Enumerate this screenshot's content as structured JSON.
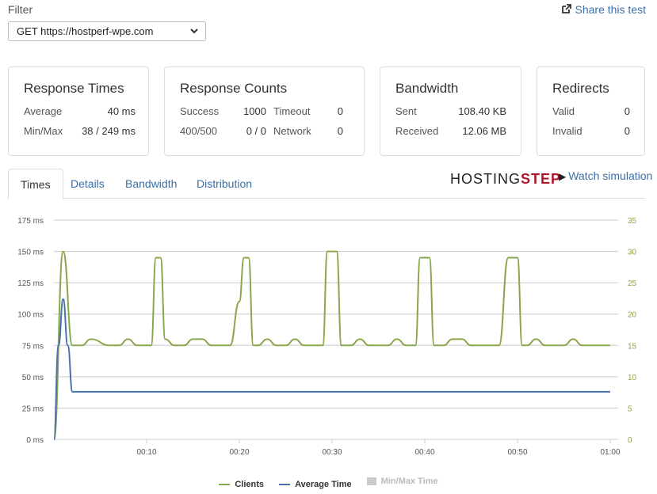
{
  "filter": {
    "label": "Filter",
    "selected": "GET https://hostperf-wpe.com"
  },
  "share_label": "Share this test",
  "cards": {
    "response_times": {
      "title": "Response Times",
      "average_label": "Average",
      "average_value": "40 ms",
      "minmax_label": "Min/Max",
      "minmax_value": "38 / 249 ms"
    },
    "response_counts": {
      "title": "Response Counts",
      "success_label": "Success",
      "success_value": "1000",
      "timeout_label": "Timeout",
      "timeout_value": "0",
      "r400_label": "400/500",
      "r400_value": "0 / 0",
      "network_label": "Network",
      "network_value": "0"
    },
    "bandwidth": {
      "title": "Bandwidth",
      "sent_label": "Sent",
      "sent_value": "108.40 KB",
      "received_label": "Received",
      "received_value": "12.06 MB"
    },
    "redirects": {
      "title": "Redirects",
      "valid_label": "Valid",
      "valid_value": "0",
      "invalid_label": "Invalid",
      "invalid_value": "0"
    }
  },
  "tabs": [
    "Times",
    "Details",
    "Bandwidth",
    "Distribution"
  ],
  "logo": {
    "main": "HOSTING",
    "accent": "STEP"
  },
  "watch_label": "Watch simulation",
  "colors": {
    "clients": "#8aa64a",
    "average": "#4a72a8",
    "minmax": "#cccccc",
    "grid": "#cccccc"
  },
  "chart_data": {
    "type": "line",
    "x_ticks": [
      "00:10",
      "00:20",
      "00:30",
      "00:40",
      "00:50",
      "01:00"
    ],
    "x_tick_seconds": [
      10,
      20,
      30,
      40,
      50,
      60
    ],
    "xlim": [
      0,
      60
    ],
    "y_left_ticks": [
      "0 ms",
      "25 ms",
      "50 ms",
      "75 ms",
      "100 ms",
      "125 ms",
      "150 ms",
      "175 ms"
    ],
    "y_left_lim": [
      0,
      175
    ],
    "y_right_ticks": [
      "0",
      "5",
      "10",
      "15",
      "20",
      "25",
      "30",
      "35"
    ],
    "y_right_lim": [
      0,
      35
    ],
    "series": [
      {
        "name": "Clients",
        "axis": "right",
        "x": [
          0,
          1,
          2,
          3,
          4,
          6,
          7,
          8,
          9,
          10,
          10.5,
          11,
          11.5,
          12,
          13,
          14,
          15,
          16,
          17,
          18,
          19,
          20,
          20.5,
          21,
          21.5,
          22,
          23,
          24,
          25,
          26,
          27,
          28,
          29,
          29.5,
          30,
          30.5,
          31,
          32,
          33,
          34,
          35,
          36,
          37,
          38,
          39,
          39.5,
          40,
          40.5,
          41,
          42,
          43,
          44,
          45,
          46,
          47,
          48,
          49,
          49.5,
          50,
          50.5,
          51,
          52,
          53,
          54,
          55,
          56,
          57,
          58,
          59,
          60
        ],
        "values": [
          0,
          30,
          15,
          15,
          16,
          15,
          15,
          16,
          15,
          15,
          15,
          29,
          29,
          16,
          15,
          15,
          16,
          16,
          15,
          15,
          15,
          22,
          29,
          29,
          15,
          15,
          16,
          15,
          15,
          16,
          15,
          15,
          15,
          30,
          30,
          30,
          15,
          15,
          16,
          15,
          15,
          15,
          16,
          15,
          15,
          29,
          29,
          29,
          15,
          15,
          16,
          16,
          15,
          15,
          15,
          15,
          29,
          29,
          29,
          15,
          15,
          16,
          15,
          15,
          15,
          16,
          15,
          15,
          15,
          15
        ]
      },
      {
        "name": "Average Time",
        "axis": "left",
        "x": [
          0,
          0.5,
          1,
          1.5,
          2,
          60
        ],
        "values": [
          0,
          75,
          112,
          75,
          38,
          38
        ]
      },
      {
        "name": "Min/Max Time",
        "axis": "left",
        "hidden": true,
        "x": [],
        "values": []
      }
    ]
  }
}
